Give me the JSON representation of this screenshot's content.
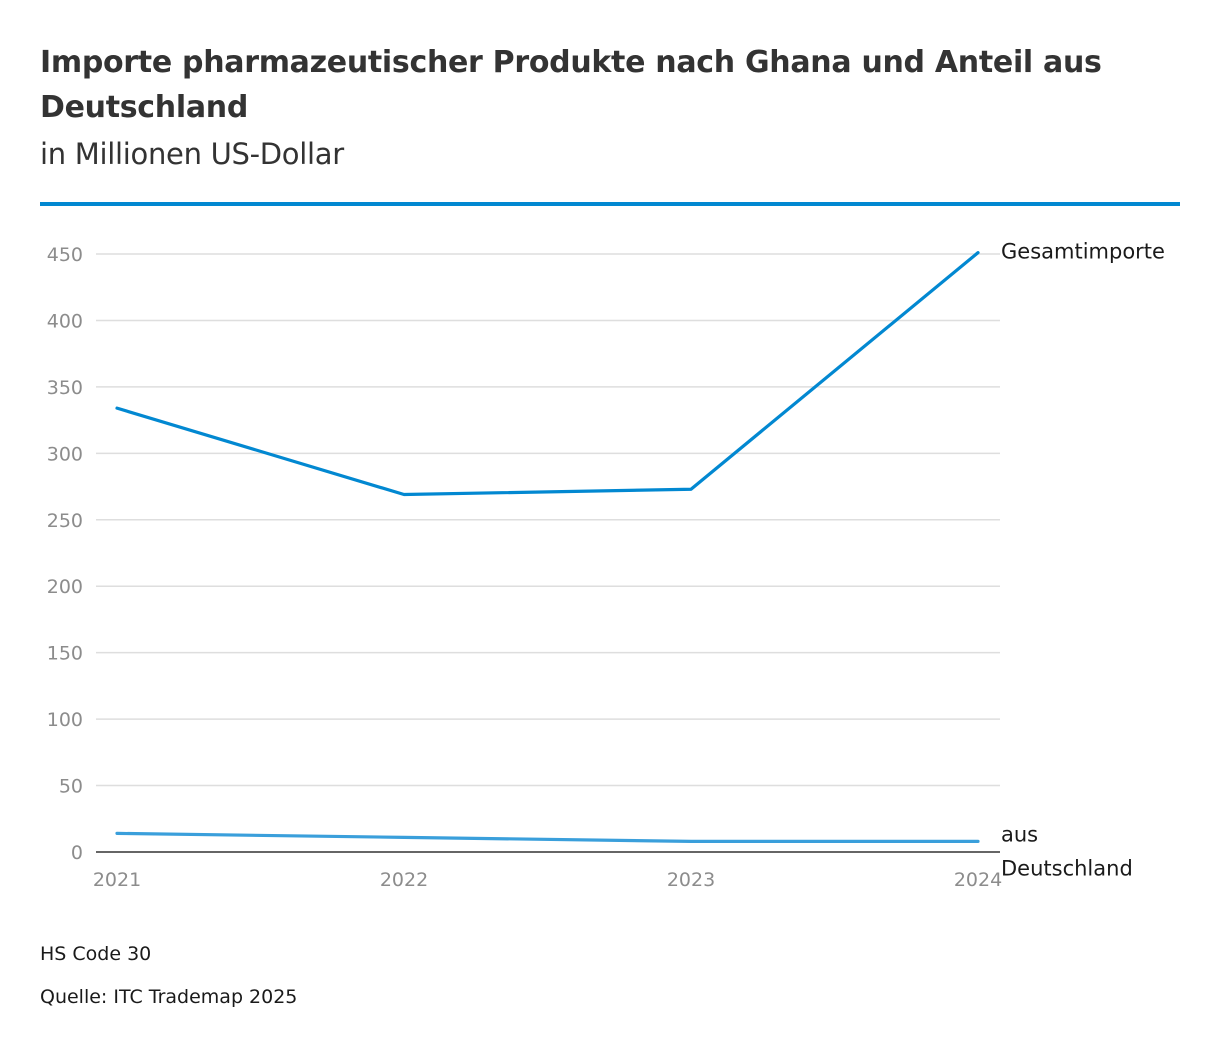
{
  "chart_data": {
    "type": "line",
    "title": "Importe pharmazeutischer Produkte nach Ghana und Anteil aus Deutschland",
    "subtitle": "in Millionen US-Dollar",
    "x": [
      "2021",
      "2022",
      "2023",
      "2024"
    ],
    "yticks": [
      0,
      50,
      100,
      150,
      200,
      250,
      300,
      350,
      400,
      450
    ],
    "ylim": [
      0,
      450
    ],
    "grid": true,
    "series": [
      {
        "name": "Gesamtimporte",
        "label_lines": [
          "Gesamtimporte"
        ],
        "color": "#0288d1",
        "values": [
          334,
          269,
          273,
          451
        ]
      },
      {
        "name": "aus Deutschland",
        "label_lines": [
          "aus",
          "Deutschland"
        ],
        "color": "#3a9fdb",
        "values": [
          14,
          11,
          8,
          8
        ]
      }
    ]
  },
  "footer": {
    "note": "HS Code 30",
    "source": "Quelle: ITC Trademap 2025"
  },
  "colors": {
    "accent": "#0288d1",
    "grid": "#dedede",
    "axis": "#333333",
    "tick_label": "#8c8c8c"
  }
}
